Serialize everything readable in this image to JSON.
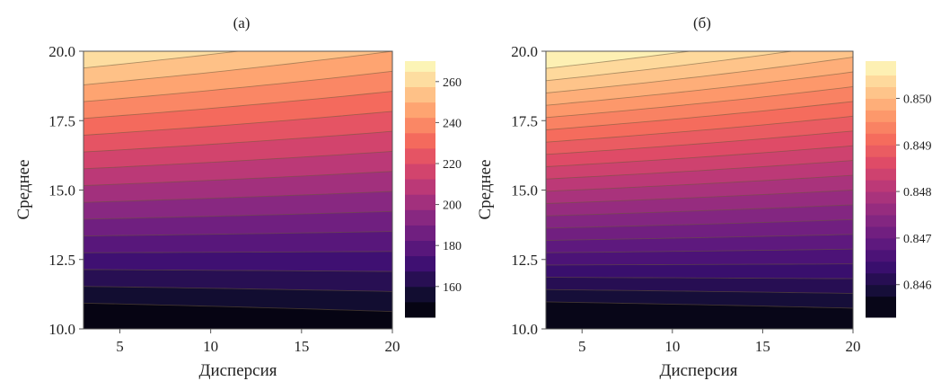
{
  "figure": {
    "colors": [
      "#000004",
      "#140e36",
      "#3b0f70",
      "#641a80",
      "#8c2981",
      "#b73779",
      "#de4968",
      "#f66e5c",
      "#fe9f6d",
      "#fecf92",
      "#fcfdbf"
    ]
  },
  "chart_data": [
    {
      "type": "contour",
      "panel_label": "(a)",
      "title": "",
      "xlabel": "Дисперсия",
      "ylabel": "Среднее",
      "xlim": [
        3,
        20
      ],
      "ylim": [
        10.0,
        20.0
      ],
      "x_ticks": [
        5,
        10,
        15,
        20
      ],
      "x_tick_labels": [
        "5",
        "10",
        "15",
        "20"
      ],
      "y_ticks": [
        10.0,
        12.5,
        15.0,
        17.5,
        20.0
      ],
      "y_tick_labels": [
        "10.0",
        "12.5",
        "15.0",
        "17.5",
        "20.0"
      ],
      "z_range": [
        145,
        270
      ],
      "levels": [
        145,
        152.5,
        160,
        167.5,
        175,
        182.5,
        190,
        197.5,
        205,
        212.5,
        220,
        227.5,
        235,
        242.5,
        250,
        257.5,
        265,
        270
      ],
      "colorbar_ticks": [
        160,
        180,
        200,
        220,
        240,
        260
      ],
      "colorbar_tick_labels": [
        "160",
        "180",
        "200",
        "220",
        "240",
        "260"
      ],
      "surface": {
        "z_at_x3_y10": 141,
        "z_at_x20_y10": 146,
        "z_at_x3_y20": 265,
        "z_at_x20_y20": 250
      }
    },
    {
      "type": "contour",
      "panel_label": "(б)",
      "title": "",
      "xlabel": "Дисперсия",
      "ylabel": "Среднее",
      "xlim": [
        3,
        20
      ],
      "ylim": [
        10.0,
        20.0
      ],
      "x_ticks": [
        5,
        10,
        15,
        20
      ],
      "x_tick_labels": [
        "5",
        "10",
        "15",
        "20"
      ],
      "y_ticks": [
        10.0,
        12.5,
        15.0,
        17.5,
        20.0
      ],
      "y_tick_labels": [
        "10.0",
        "12.5",
        "15.0",
        "17.5",
        "20.0"
      ],
      "z_range": [
        0.8453,
        0.8508
      ],
      "levels": [
        0.8453,
        0.84575,
        0.846,
        0.84625,
        0.8465,
        0.84675,
        0.847,
        0.84725,
        0.8475,
        0.84775,
        0.848,
        0.84825,
        0.8485,
        0.84875,
        0.849,
        0.84925,
        0.8495,
        0.84975,
        0.85,
        0.85025,
        0.8505,
        0.8508
      ],
      "colorbar_ticks": [
        0.846,
        0.847,
        0.848,
        0.849,
        0.85
      ],
      "colorbar_tick_labels": [
        "0.846",
        "0.847",
        "0.848",
        "0.849",
        "0.850"
      ],
      "surface": {
        "z_at_x3_y10": 0.8452,
        "z_at_x20_y10": 0.8454,
        "z_at_x3_y20": 0.85085,
        "z_at_x20_y20": 0.8501
      }
    }
  ]
}
